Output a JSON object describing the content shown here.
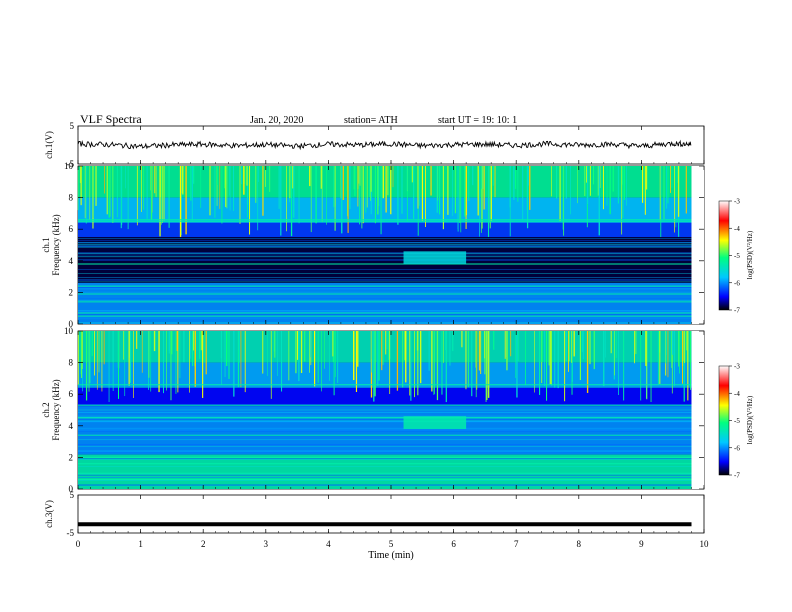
{
  "header": {
    "title": "VLF  Spectra",
    "date": "Jan. 20, 2020",
    "station": "station= ATH",
    "start_ut": "start  UT  =    19: 10: 1"
  },
  "chart_data": [
    {
      "type": "line",
      "panel": "ch1-waveform",
      "ylabel": "ch.1(V)",
      "ylim": [
        -5,
        5
      ],
      "yticks": [
        "5",
        "-5"
      ],
      "x": [
        0,
        0.5,
        1.0,
        1.5,
        2.0,
        2.5,
        3.0,
        3.5,
        4.0,
        4.5,
        5.0,
        5.5,
        6.0,
        6.5,
        7.0,
        7.5,
        8.0,
        8.5,
        9.0,
        9.5,
        9.8
      ],
      "y": [
        0.3,
        0.1,
        -0.4,
        0.0,
        0.2,
        -0.2,
        0.1,
        -0.3,
        0.2,
        0.0,
        0.3,
        -0.2,
        0.1,
        0.2,
        -0.1,
        0.3,
        0.0,
        0.2,
        -0.3,
        0.4,
        0.2
      ],
      "color": "#000000"
    },
    {
      "type": "heatmap",
      "panel": "ch1-spectrogram",
      "ylabel": "ch.1\nFrequency (kHz)",
      "ylabel_line1": "ch.1",
      "ylabel_line2": "Frequency (kHz)",
      "ylim": [
        0,
        10
      ],
      "yticks": [
        "0",
        "2",
        "4",
        "6",
        "8",
        "10"
      ],
      "xlim": [
        0,
        10
      ],
      "colorbar": {
        "label": "log(PSD)(V²/Hz)",
        "range": [
          -7,
          -3
        ],
        "ticks": [
          "-3",
          "-4",
          "-5",
          "-6",
          "-7"
        ],
        "colors": [
          "#000000",
          "#0000ff",
          "#00c8ff",
          "#00ff80",
          "#ffff00",
          "#ff0000",
          "#ffffff"
        ]
      },
      "bands_khz": [
        {
          "from": 8.0,
          "to": 10.0,
          "level": -5.2
        },
        {
          "from": 6.4,
          "to": 8.0,
          "level": -5.8
        },
        {
          "from": 5.5,
          "to": 6.4,
          "level": -6.3
        },
        {
          "from": 2.6,
          "to": 5.5,
          "level": -6.9
        },
        {
          "from": 0.0,
          "to": 2.6,
          "level": -6.0
        }
      ],
      "lines_khz": [
        6.6,
        6.5,
        3.8,
        2.4,
        1.9,
        1.4,
        0.7,
        0.5
      ],
      "burst": {
        "t_start_min": 5.2,
        "t_end_min": 6.2,
        "f_low_khz": 3.8,
        "f_high_khz": 4.6,
        "level": -5.6
      }
    },
    {
      "type": "heatmap",
      "panel": "ch2-spectrogram",
      "ylabel_line1": "ch.2",
      "ylabel_line2": "Frequency (kHz)",
      "ylim": [
        0,
        10
      ],
      "yticks": [
        "0",
        "2",
        "4",
        "6",
        "8",
        "10"
      ],
      "xlim": [
        0,
        10
      ],
      "colorbar": {
        "label": "log(PSD)(V²/Hz)",
        "range": [
          -7,
          -3
        ],
        "ticks": [
          "-3",
          "-4",
          "-5",
          "-6",
          "-7"
        ],
        "colors": [
          "#000000",
          "#0000ff",
          "#00c8ff",
          "#00ff80",
          "#ffff00",
          "#ff0000",
          "#ffffff"
        ]
      },
      "bands_khz": [
        {
          "from": 8.0,
          "to": 10.0,
          "level": -5.4
        },
        {
          "from": 6.4,
          "to": 8.0,
          "level": -5.9
        },
        {
          "from": 5.2,
          "to": 6.4,
          "level": -6.5
        },
        {
          "from": 2.2,
          "to": 5.2,
          "level": -6.0
        },
        {
          "from": 0.0,
          "to": 2.2,
          "level": -5.3
        }
      ],
      "lines_khz": [
        6.6,
        5.3,
        4.5,
        3.4,
        2.0,
        1.6,
        1.0,
        0.6
      ],
      "burst": {
        "t_start_min": 5.2,
        "t_end_min": 6.2,
        "f_low_khz": 3.8,
        "f_high_khz": 4.6,
        "level": -5.3
      }
    },
    {
      "type": "line",
      "panel": "ch3-waveform",
      "ylabel": "ch.3(V)",
      "ylim": [
        -5,
        5
      ],
      "yticks": [
        "5",
        "-5"
      ],
      "x": [
        0,
        9.8
      ],
      "y": [
        -2.7,
        -2.7
      ],
      "color": "#000000"
    }
  ],
  "xaxis": {
    "label": "Time  (min)",
    "ticks": [
      "0",
      "1",
      "2",
      "3",
      "4",
      "5",
      "6",
      "7",
      "8",
      "9",
      "10"
    ],
    "xlim": [
      0,
      10
    ]
  }
}
